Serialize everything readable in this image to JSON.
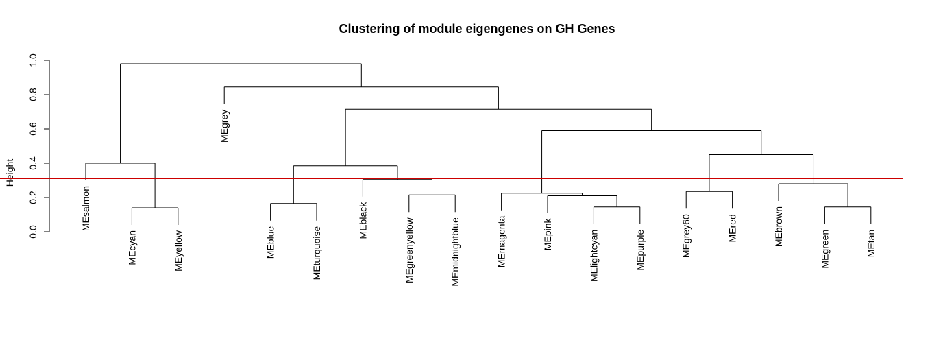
{
  "chart_data": {
    "type": "dendrogram",
    "title": "Clustering of module eigengenes on GH Genes",
    "ylabel": "Height",
    "xlabel": "",
    "ylim": [
      0,
      1
    ],
    "yticks": [
      0.0,
      0.2,
      0.4,
      0.6,
      0.8,
      1.0
    ],
    "ytick_labels": [
      "0.0",
      "0.2",
      "0.4",
      "0.6",
      "0.8",
      "1.0"
    ],
    "cut_height": 0.31,
    "cut_color": "#cc0000",
    "line_color": "#000000",
    "leaves": [
      "MEsalmon",
      "MEcyan",
      "MEyellow",
      "MEgrey",
      "MEblue",
      "MEturquoise",
      "MEblack",
      "MEgreenyellow",
      "MEmidnightblue",
      "MEmagenta",
      "MEpink",
      "MElightcyan",
      "MEpurple",
      "MEgrey60",
      "MEred",
      "MEbrown",
      "MEgreen",
      "MEtan"
    ],
    "merges": [
      {
        "a": "MEcyan",
        "b": "MEyellow",
        "height": 0.14
      },
      {
        "a": "MEsalmon",
        "b": [
          "MEcyan",
          "MEyellow"
        ],
        "height": 0.4
      },
      {
        "a": "MEblue",
        "b": "MEturquoise",
        "height": 0.165
      },
      {
        "a": "MEgreenyellow",
        "b": "MEmidnightblue",
        "height": 0.215
      },
      {
        "a": "MEblack",
        "b": [
          "MEgreenyellow",
          "MEmidnightblue"
        ],
        "height": 0.305
      },
      {
        "a": [
          "MEblue",
          "MEturquoise"
        ],
        "b": [
          "MEblack",
          "MEgreenyellow",
          "MEmidnightblue"
        ],
        "height": 0.385
      },
      {
        "a": "MElightcyan",
        "b": "MEpurple",
        "height": 0.145
      },
      {
        "a": "MEpink",
        "b": [
          "MElightcyan",
          "MEpurple"
        ],
        "height": 0.21
      },
      {
        "a": "MEmagenta",
        "b": [
          "MEpink",
          "MElightcyan",
          "MEpurple"
        ],
        "height": 0.225
      },
      {
        "a": "MEgrey60",
        "b": "MEred",
        "height": 0.235
      },
      {
        "a": "MEgreen",
        "b": "MEtan",
        "height": 0.145
      },
      {
        "a": "MEbrown",
        "b": [
          "MEgreen",
          "MEtan"
        ],
        "height": 0.28
      },
      {
        "a": [
          "MEgrey60",
          "MEred"
        ],
        "b": [
          "MEbrown",
          "MEgreen",
          "MEtan"
        ],
        "height": 0.45
      },
      {
        "a": [
          "MEmagenta",
          "MEpink",
          "MElightcyan",
          "MEpurple"
        ],
        "b": [
          "MEgrey60",
          "MEred",
          "MEbrown",
          "MEgreen",
          "MEtan"
        ],
        "height": 0.59
      },
      {
        "a": [
          "MEblue",
          "MEturquoise",
          "MEblack",
          "MEgreenyellow",
          "MEmidnightblue"
        ],
        "b": [
          "MEmagenta",
          "MEpink",
          "MElightcyan",
          "MEpurple",
          "MEgrey60",
          "MEred",
          "MEbrown",
          "MEgreen",
          "MEtan"
        ],
        "height": 0.715
      },
      {
        "a": "MEgrey",
        "b": [
          "MEblue",
          "MEturquoise",
          "MEblack",
          "MEgreenyellow",
          "MEmidnightblue",
          "MEmagenta",
          "MEpink",
          "MElightcyan",
          "MEpurple",
          "MEgrey60",
          "MEred",
          "MEbrown",
          "MEgreen",
          "MEtan"
        ],
        "height": 0.845
      },
      {
        "a": [
          "MEsalmon",
          "MEcyan",
          "MEyellow"
        ],
        "b": [
          "MEgrey",
          "MEblue",
          "MEturquoise",
          "MEblack",
          "MEgreenyellow",
          "MEmidnightblue",
          "MEmagenta",
          "MEpink",
          "MElightcyan",
          "MEpurple",
          "MEgrey60",
          "MEred",
          "MEbrown",
          "MEgreen",
          "MEtan"
        ],
        "height": 0.98
      }
    ],
    "grid": false,
    "legend": "none"
  }
}
